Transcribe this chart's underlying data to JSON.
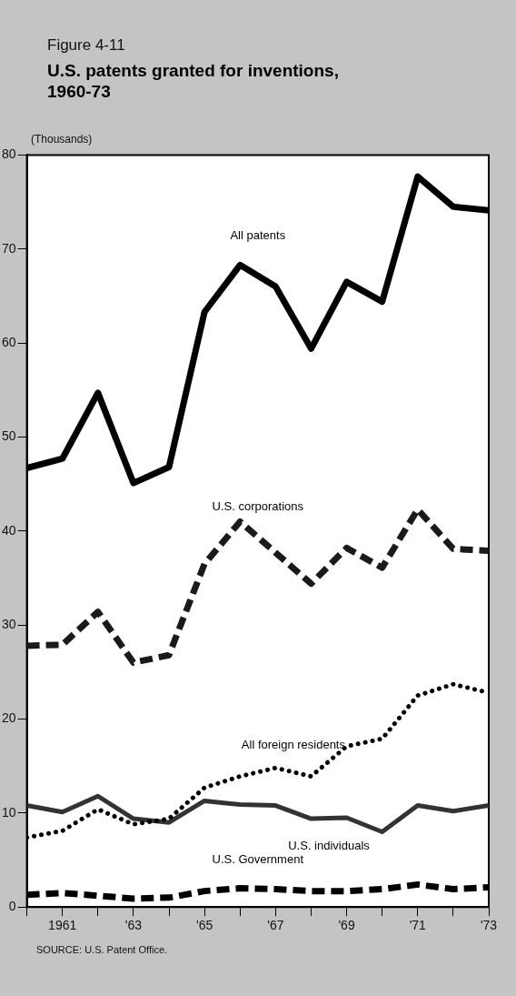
{
  "chart_data": {
    "type": "line",
    "title": "U.S. patents granted for inventions, 1960-73",
    "subtitle": "Figure 4-11",
    "ylabel": "(Thousands)",
    "annotations": [
      "SOURCE: U.S. Patent Office."
    ],
    "x": [
      1960,
      1961,
      1962,
      1963,
      1964,
      1965,
      1966,
      1967,
      1968,
      1969,
      1970,
      1971,
      1972,
      1973
    ],
    "xlim": [
      1960,
      1973
    ],
    "xticks": [
      {
        "value": 1960,
        "label": null
      },
      {
        "value": 1961,
        "label": "1961"
      },
      {
        "value": 1962,
        "label": null
      },
      {
        "value": 1963,
        "label": "'63"
      },
      {
        "value": 1964,
        "label": null
      },
      {
        "value": 1965,
        "label": "'65"
      },
      {
        "value": 1966,
        "label": null
      },
      {
        "value": 1967,
        "label": "'67"
      },
      {
        "value": 1968,
        "label": null
      },
      {
        "value": 1969,
        "label": "'69"
      },
      {
        "value": 1970,
        "label": null
      },
      {
        "value": 1971,
        "label": "'71"
      },
      {
        "value": 1972,
        "label": null
      },
      {
        "value": 1973,
        "label": "'73"
      }
    ],
    "ylim": [
      0,
      80
    ],
    "yticks": [
      0,
      10,
      20,
      30,
      40,
      50,
      60,
      70,
      80
    ],
    "grid": false,
    "legend": false,
    "marker": "none",
    "series": [
      {
        "name": "All patents",
        "color": "#000000",
        "line_style": "solid",
        "values": [
          46.7,
          47.7,
          54.7,
          45.1,
          46.8,
          63.3,
          68.3,
          66.0,
          59.4,
          66.5,
          64.4,
          77.7,
          74.5,
          74.1
        ]
      },
      {
        "name": "U.S. corporations",
        "color": "#1a1a1a",
        "line_style": "dashed",
        "values": [
          27.8,
          27.9,
          31.4,
          26.0,
          26.8,
          36.5,
          41.0,
          37.7,
          34.4,
          38.2,
          36.1,
          42.3,
          38.1,
          37.9
        ]
      },
      {
        "name": "All foreign residents",
        "color": "#000000",
        "line_style": "dotted",
        "values": [
          7.4,
          8.1,
          10.4,
          8.8,
          9.4,
          12.7,
          13.9,
          14.8,
          13.9,
          17.1,
          17.9,
          22.5,
          23.7,
          22.8
        ]
      },
      {
        "name": "U.S. individuals",
        "color": "#333333",
        "line_style": "solid",
        "values": [
          10.8,
          10.1,
          11.8,
          9.4,
          9.0,
          11.3,
          10.9,
          10.8,
          9.4,
          9.5,
          8.0,
          10.8,
          10.2,
          10.8
        ]
      },
      {
        "name": "U.S. Government",
        "color": "#000000",
        "line_style": "dashed",
        "values": [
          1.3,
          1.5,
          1.2,
          0.9,
          1.0,
          1.7,
          2.0,
          1.9,
          1.7,
          1.7,
          1.9,
          2.4,
          1.9,
          2.1
        ]
      }
    ]
  }
}
